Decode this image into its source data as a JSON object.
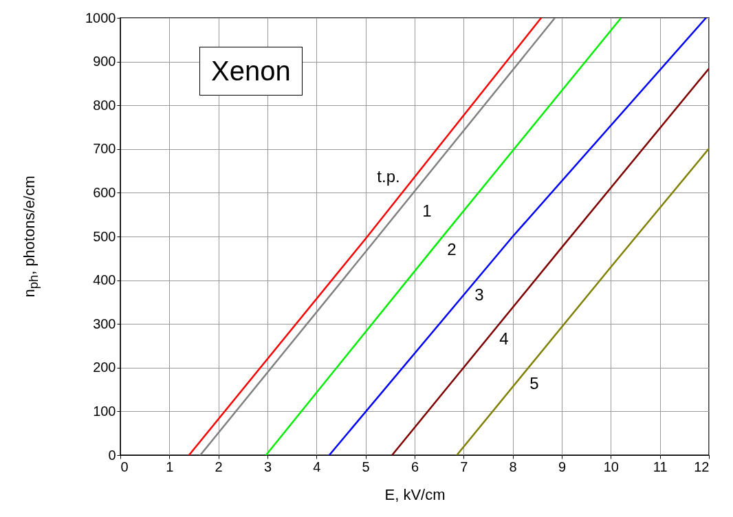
{
  "chart_data": {
    "type": "line",
    "xlabel": "E, kV/cm",
    "ylabel": "n$_{ph}$,  photons/e/cm",
    "xlim": [
      0,
      12
    ],
    "ylim": [
      0,
      1000
    ],
    "xticks": [
      0,
      1,
      2,
      3,
      4,
      5,
      6,
      7,
      8,
      9,
      10,
      11,
      12
    ],
    "yticks": [
      0,
      100,
      200,
      300,
      400,
      500,
      600,
      700,
      800,
      900,
      1000
    ],
    "grid": true,
    "legend": false,
    "series": [
      {
        "color": "#ff0000",
        "x": [
          1.4,
          5,
          8.58
        ],
        "values": [
          0,
          495,
          1000
        ]
      },
      {
        "color": "#808080",
        "x": [
          1.63,
          5,
          8.86
        ],
        "values": [
          0,
          465,
          1000
        ]
      },
      {
        "color": "#00ee00",
        "x": [
          2.97,
          6.5,
          10.21
        ],
        "values": [
          0,
          490,
          1000
        ]
      },
      {
        "color": "#0000ff",
        "x": [
          4.26,
          8,
          11.94
        ],
        "values": [
          0,
          500,
          1000
        ]
      },
      {
        "color": "#800000",
        "x": [
          5.54,
          9,
          12
        ],
        "values": [
          0,
          475,
          884
        ]
      },
      {
        "color": "#808000",
        "x": [
          6.86,
          10,
          12
        ],
        "values": [
          0,
          430,
          701
        ]
      }
    ],
    "annotations": [
      "Xenon",
      "t.p.",
      "1",
      "2",
      "3",
      "4",
      "5"
    ]
  }
}
